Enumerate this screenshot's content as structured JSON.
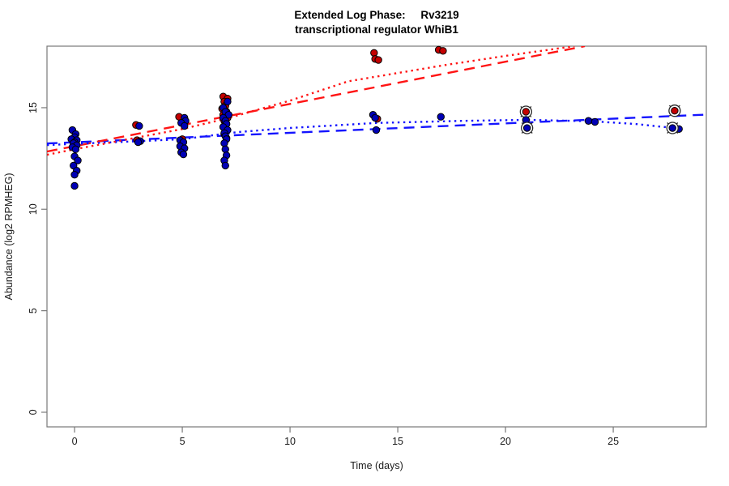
{
  "chart_data": {
    "type": "scatter",
    "title": "Extended Log Phase:     Rv3219",
    "subtitle": "transcriptional regulator WhiB1",
    "xlabel": "Time  (days)",
    "ylabel": "Abundance  (log2 RPMHEG)",
    "x_ticks": [
      0,
      5,
      10,
      15,
      20,
      25
    ],
    "y_ticks": [
      0,
      5,
      10,
      15
    ],
    "xlim": [
      -1.28,
      29.32
    ],
    "ylim": [
      -0.72,
      18.03
    ],
    "grid": false,
    "legend": "none",
    "colors": {
      "red_point": "#c40000",
      "blue_point": "#0000b6",
      "red_line": "#ff1414",
      "blue_line": "#1414ff",
      "point_outline": "#000000",
      "circle_marker": "#2a2a2a",
      "axis": "#787878",
      "text": "#1a1a1a"
    },
    "series": [
      {
        "name": "red-samples",
        "marker": "filled-circle",
        "color": "#c40000",
        "points": [
          [
            2.85,
            14.15
          ],
          [
            2.9,
            13.4
          ],
          [
            4.85,
            14.55
          ],
          [
            5.0,
            13.45
          ],
          [
            6.9,
            15.55
          ],
          [
            7.1,
            15.45
          ],
          [
            6.95,
            15.3
          ],
          [
            7.0,
            15.1
          ],
          [
            6.85,
            14.95
          ],
          [
            7.05,
            14.8
          ],
          [
            6.9,
            14.65
          ],
          [
            7.1,
            14.5
          ],
          [
            6.95,
            14.35
          ],
          [
            7.05,
            14.2
          ],
          [
            6.9,
            14.05
          ],
          [
            7.0,
            13.9
          ],
          [
            6.95,
            13.7
          ],
          [
            7.05,
            13.5
          ],
          [
            13.9,
            17.7
          ],
          [
            13.95,
            17.4
          ],
          [
            14.1,
            17.35
          ],
          [
            14.05,
            14.45
          ],
          [
            16.9,
            17.85
          ],
          [
            17.1,
            17.8
          ]
        ]
      },
      {
        "name": "red-samples-circled",
        "marker": "filled-circle-with-crossed-ring",
        "color": "#c40000",
        "points": [
          [
            20.95,
            14.8
          ],
          [
            27.85,
            14.85
          ]
        ]
      },
      {
        "name": "blue-samples",
        "marker": "filled-circle",
        "color": "#0000b6",
        "points": [
          [
            -0.1,
            13.9
          ],
          [
            0.05,
            13.7
          ],
          [
            0.0,
            13.55
          ],
          [
            -0.15,
            13.45
          ],
          [
            0.1,
            13.4
          ],
          [
            0.0,
            13.3
          ],
          [
            -0.05,
            13.25
          ],
          [
            0.1,
            13.15
          ],
          [
            -0.1,
            13.05
          ],
          [
            0.05,
            12.95
          ],
          [
            0.0,
            12.6
          ],
          [
            0.15,
            12.4
          ],
          [
            -0.05,
            12.15
          ],
          [
            0.1,
            11.9
          ],
          [
            0.0,
            11.7
          ],
          [
            0.0,
            11.15
          ],
          [
            3.0,
            14.1
          ],
          [
            3.05,
            13.35
          ],
          [
            2.95,
            13.3
          ],
          [
            5.1,
            14.5
          ],
          [
            5.15,
            14.35
          ],
          [
            4.95,
            14.25
          ],
          [
            5.1,
            14.1
          ],
          [
            4.9,
            13.4
          ],
          [
            5.05,
            13.3
          ],
          [
            4.9,
            13.1
          ],
          [
            5.1,
            13.0
          ],
          [
            4.95,
            12.8
          ],
          [
            5.05,
            12.7
          ],
          [
            7.1,
            15.3
          ],
          [
            6.9,
            15.0
          ],
          [
            7.0,
            14.8
          ],
          [
            7.15,
            14.65
          ],
          [
            6.9,
            14.5
          ],
          [
            7.0,
            14.35
          ],
          [
            7.05,
            14.2
          ],
          [
            6.9,
            14.05
          ],
          [
            7.1,
            13.9
          ],
          [
            6.95,
            13.75
          ],
          [
            7.0,
            13.6
          ],
          [
            7.05,
            13.45
          ],
          [
            6.95,
            13.25
          ],
          [
            7.0,
            12.95
          ],
          [
            7.05,
            12.65
          ],
          [
            6.95,
            12.4
          ],
          [
            7.0,
            12.15
          ],
          [
            13.85,
            14.65
          ],
          [
            13.95,
            14.5
          ],
          [
            14.0,
            13.9
          ],
          [
            17.0,
            14.55
          ],
          [
            20.95,
            14.4
          ],
          [
            23.85,
            14.35
          ],
          [
            24.15,
            14.3
          ],
          [
            28.05,
            13.95
          ]
        ]
      },
      {
        "name": "blue-samples-circled",
        "marker": "filled-circle-with-crossed-ring",
        "color": "#0000b6",
        "points": [
          [
            21.0,
            14.0
          ],
          [
            27.75,
            14.0
          ]
        ]
      }
    ],
    "trend_lines": [
      {
        "name": "blue-linear-fit",
        "color": "#1414ff",
        "style": "longdash",
        "points": [
          [
            -1.28,
            13.24
          ],
          [
            29.3,
            14.66
          ]
        ]
      },
      {
        "name": "red-linear-fit",
        "color": "#ff1414",
        "style": "longdash",
        "points": [
          [
            -1.28,
            12.84
          ],
          [
            23.68,
            18.03
          ]
        ]
      },
      {
        "name": "blue-spline-fit",
        "color": "#1414ff",
        "style": "dotted",
        "points": [
          [
            -1.28,
            13.16
          ],
          [
            0,
            13.22
          ],
          [
            3,
            13.35
          ],
          [
            5,
            13.45
          ],
          [
            7.6,
            13.8
          ],
          [
            10,
            14.0
          ],
          [
            14,
            14.25
          ],
          [
            18,
            14.35
          ],
          [
            21,
            14.4
          ],
          [
            24,
            14.33
          ],
          [
            26,
            14.2
          ],
          [
            27.8,
            14.0
          ]
        ]
      },
      {
        "name": "red-spline-fit",
        "color": "#ff1414",
        "style": "dotted",
        "points": [
          [
            -1.28,
            12.68
          ],
          [
            0,
            12.95
          ],
          [
            3,
            13.55
          ],
          [
            5,
            13.95
          ],
          [
            7,
            14.45
          ],
          [
            10,
            15.35
          ],
          [
            12.7,
            16.3
          ],
          [
            17.2,
            17.1
          ],
          [
            20,
            17.55
          ],
          [
            23.2,
            18.03
          ]
        ]
      }
    ]
  }
}
